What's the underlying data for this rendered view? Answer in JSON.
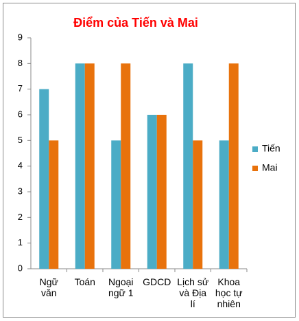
{
  "chart_data": {
    "type": "bar",
    "title": "Điểm của Tiến và Mai",
    "categories": [
      "Ngữ văn",
      "Toán",
      "Ngoại ngữ 1",
      "GDCD",
      "Lịch sử và Địa lí",
      "Khoa học tự nhiên"
    ],
    "series": [
      {
        "name": "Tiến",
        "color": "#4bacc6",
        "values": [
          7,
          8,
          5,
          6,
          8,
          5
        ]
      },
      {
        "name": "Mai",
        "color": "#e8720c",
        "values": [
          5,
          8,
          8,
          6,
          5,
          8
        ]
      }
    ],
    "ylim": [
      0,
      9
    ],
    "yticks": [
      0,
      1,
      2,
      3,
      4,
      5,
      6,
      7,
      8,
      9
    ],
    "grid": false,
    "legend": "right"
  }
}
